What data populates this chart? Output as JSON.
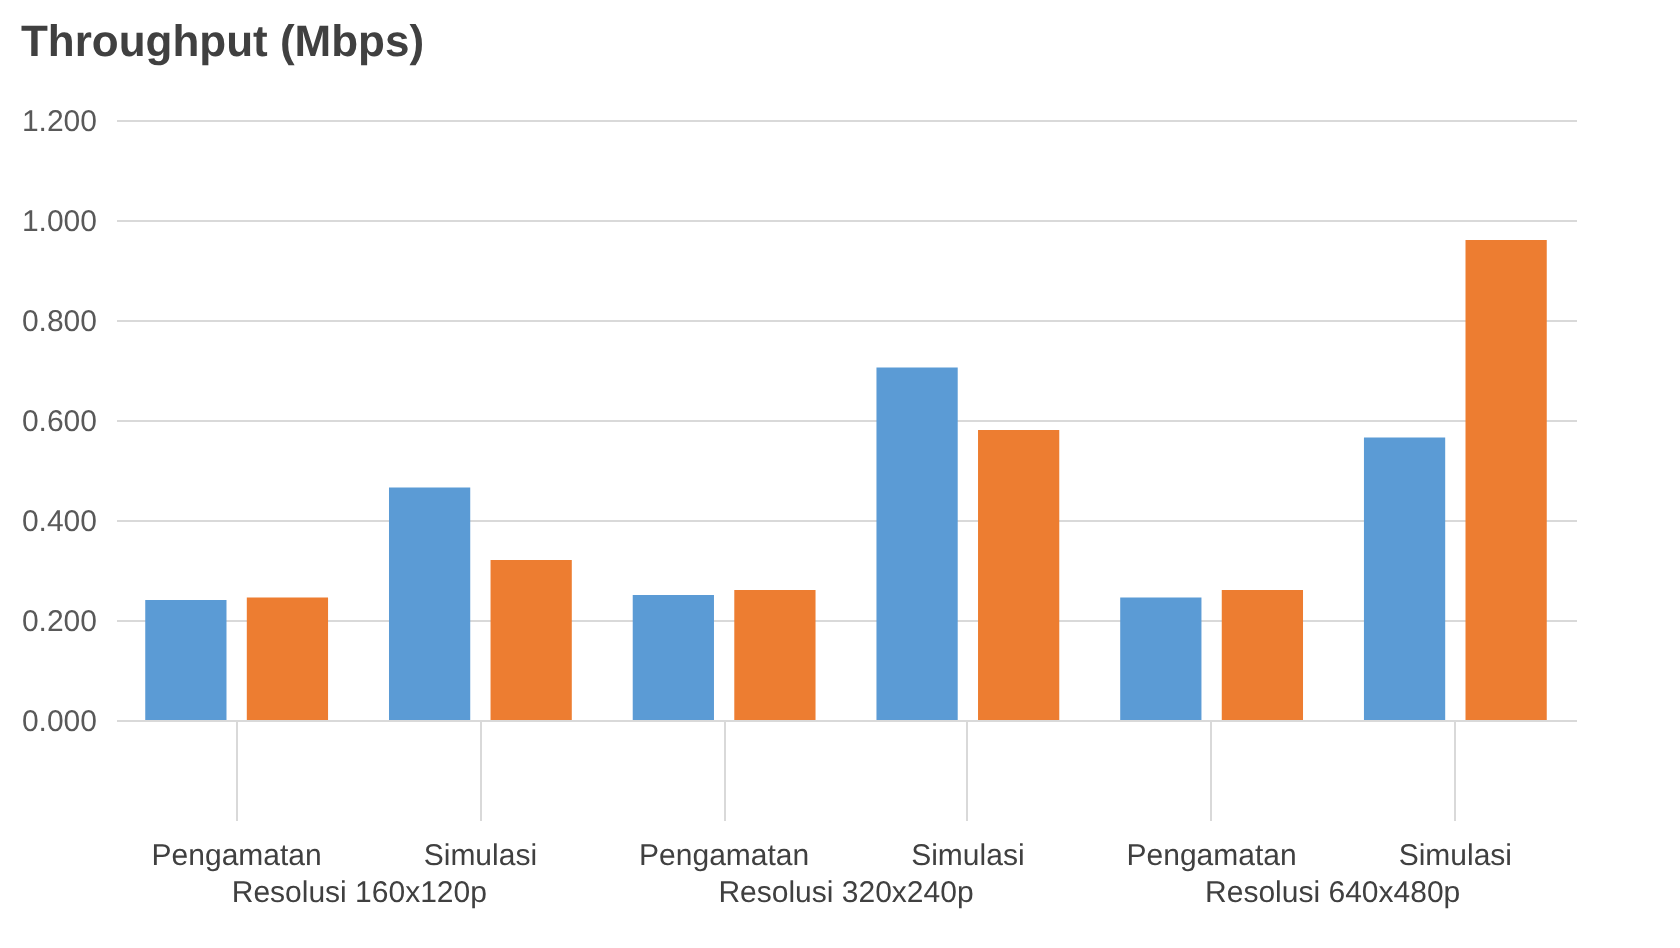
{
  "chart_data": {
    "type": "bar",
    "title": "Throughput (Mbps)",
    "categories": [
      "Pengamatan",
      "Simulasi",
      "Pengamatan",
      "Simulasi",
      "Pengamatan",
      "Simulasi"
    ],
    "series": [
      {
        "color": "#5b9bd5",
        "values": [
          0.24,
          0.465,
          0.25,
          0.705,
          0.245,
          0.565
        ]
      },
      {
        "color": "#ed7d31",
        "values": [
          0.245,
          0.32,
          0.26,
          0.58,
          0.26,
          0.96
        ]
      }
    ],
    "ylim": [
      0,
      1.2
    ],
    "yticks": [
      {
        "value": 0,
        "label": "0.000"
      },
      {
        "value": 0.2,
        "label": "0.200"
      },
      {
        "value": 0.4,
        "label": "0.400"
      },
      {
        "value": 0.6,
        "label": "0.600"
      },
      {
        "value": 0.8,
        "label": "0.800"
      },
      {
        "value": 1,
        "label": "1.000"
      },
      {
        "value": 1.2,
        "label": "1.200"
      }
    ],
    "annotations": [
      "Resolusi 160x120p",
      "Resolusi 320x240p",
      "Resolusi 640x480p"
    ],
    "grid": "y",
    "legend": false
  }
}
